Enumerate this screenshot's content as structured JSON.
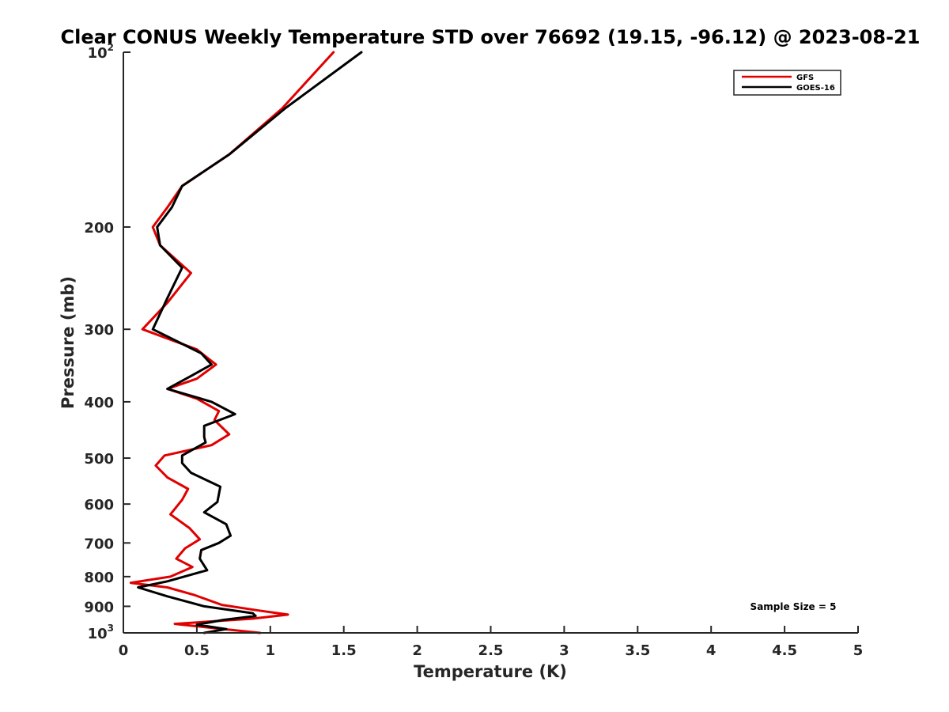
{
  "chart_data": {
    "type": "line",
    "title": "Clear CONUS Weekly Temperature STD over 76692 (19.15, -96.12) @ 2023-08-21",
    "xlabel": "Temperature (K)",
    "ylabel": "Pressure (mb)",
    "xlim": [
      0,
      5
    ],
    "ylim": [
      100,
      1000
    ],
    "y_scale": "log",
    "y_reversed": true,
    "x_ticks": [
      {
        "value": 0,
        "label": "0"
      },
      {
        "value": 0.5,
        "label": "0.5"
      },
      {
        "value": 1,
        "label": "1"
      },
      {
        "value": 1.5,
        "label": "1.5"
      },
      {
        "value": 2,
        "label": "2"
      },
      {
        "value": 2.5,
        "label": "2.5"
      },
      {
        "value": 3,
        "label": "3"
      },
      {
        "value": 3.5,
        "label": "3.5"
      },
      {
        "value": 4,
        "label": "4"
      },
      {
        "value": 4.5,
        "label": "4.5"
      },
      {
        "value": 5,
        "label": "5"
      }
    ],
    "y_ticks": [
      {
        "value": 100,
        "base": "10",
        "sup": "2"
      },
      {
        "value": 200,
        "base": "200",
        "sup": ""
      },
      {
        "value": 300,
        "base": "300",
        "sup": ""
      },
      {
        "value": 400,
        "base": "400",
        "sup": ""
      },
      {
        "value": 500,
        "base": "500",
        "sup": ""
      },
      {
        "value": 600,
        "base": "600",
        "sup": ""
      },
      {
        "value": 700,
        "base": "700",
        "sup": ""
      },
      {
        "value": 800,
        "base": "800",
        "sup": ""
      },
      {
        "value": 900,
        "base": "900",
        "sup": ""
      },
      {
        "value": 1000,
        "base": "10",
        "sup": "3"
      }
    ],
    "grid": false,
    "legend_position": "top-right",
    "annotation": "Sample Size = 5",
    "series": [
      {
        "name": "GFS",
        "color": "#e00000",
        "points": [
          [
            1.43,
            100
          ],
          [
            1.08,
            125
          ],
          [
            0.72,
            150
          ],
          [
            0.4,
            170
          ],
          [
            0.3,
            185
          ],
          [
            0.2,
            200
          ],
          [
            0.25,
            215
          ],
          [
            0.46,
            240
          ],
          [
            0.3,
            270
          ],
          [
            0.13,
            300
          ],
          [
            0.5,
            325
          ],
          [
            0.63,
            345
          ],
          [
            0.5,
            365
          ],
          [
            0.3,
            380
          ],
          [
            0.5,
            395
          ],
          [
            0.65,
            415
          ],
          [
            0.62,
            430
          ],
          [
            0.72,
            455
          ],
          [
            0.6,
            475
          ],
          [
            0.28,
            495
          ],
          [
            0.22,
            515
          ],
          [
            0.3,
            540
          ],
          [
            0.44,
            565
          ],
          [
            0.4,
            590
          ],
          [
            0.32,
            625
          ],
          [
            0.45,
            660
          ],
          [
            0.52,
            690
          ],
          [
            0.42,
            715
          ],
          [
            0.36,
            745
          ],
          [
            0.47,
            770
          ],
          [
            0.32,
            800
          ],
          [
            0.05,
            820
          ],
          [
            0.3,
            835
          ],
          [
            0.48,
            860
          ],
          [
            0.67,
            895
          ],
          [
            0.92,
            915
          ],
          [
            1.12,
            930
          ],
          [
            0.88,
            945
          ],
          [
            0.35,
            965
          ],
          [
            0.6,
            980
          ],
          [
            0.93,
            1000
          ]
        ]
      },
      {
        "name": "GOES-16",
        "color": "#000000",
        "points": [
          [
            1.62,
            100
          ],
          [
            1.1,
            125
          ],
          [
            0.72,
            150
          ],
          [
            0.4,
            170
          ],
          [
            0.33,
            185
          ],
          [
            0.23,
            200
          ],
          [
            0.25,
            215
          ],
          [
            0.4,
            235
          ],
          [
            0.3,
            265
          ],
          [
            0.2,
            300
          ],
          [
            0.53,
            330
          ],
          [
            0.6,
            345
          ],
          [
            0.47,
            360
          ],
          [
            0.3,
            380
          ],
          [
            0.6,
            400
          ],
          [
            0.76,
            420
          ],
          [
            0.55,
            440
          ],
          [
            0.55,
            460
          ],
          [
            0.56,
            470
          ],
          [
            0.4,
            495
          ],
          [
            0.4,
            510
          ],
          [
            0.46,
            530
          ],
          [
            0.66,
            560
          ],
          [
            0.64,
            595
          ],
          [
            0.55,
            620
          ],
          [
            0.7,
            650
          ],
          [
            0.73,
            680
          ],
          [
            0.65,
            700
          ],
          [
            0.53,
            720
          ],
          [
            0.52,
            745
          ],
          [
            0.57,
            780
          ],
          [
            0.3,
            815
          ],
          [
            0.1,
            835
          ],
          [
            0.3,
            865
          ],
          [
            0.55,
            900
          ],
          [
            0.88,
            925
          ],
          [
            0.9,
            935
          ],
          [
            0.68,
            950
          ],
          [
            0.5,
            968
          ],
          [
            0.7,
            985
          ],
          [
            0.55,
            1000
          ]
        ]
      }
    ]
  }
}
